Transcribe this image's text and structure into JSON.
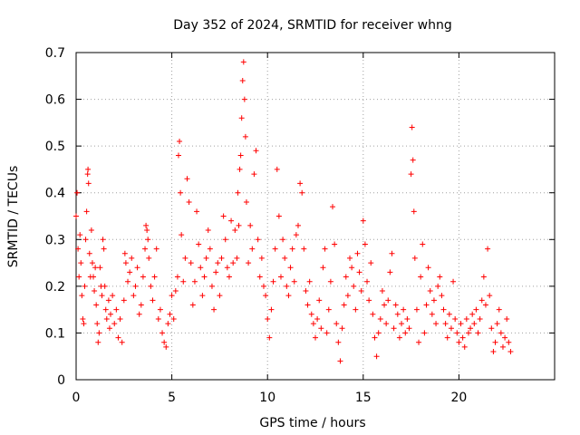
{
  "chart_data": {
    "type": "scatter",
    "title": "Day 352 of 2024, SRMTID for receiver whng",
    "xlabel": "GPS time / hours",
    "ylabel": "SRMTID / TECUs",
    "xlim": [
      0,
      25
    ],
    "ylim": [
      0,
      0.7
    ],
    "x_ticks": [
      0,
      5,
      10,
      15,
      20
    ],
    "x_tick_labels": [
      "0",
      "5",
      "10",
      "15",
      "20"
    ],
    "y_ticks": [
      0,
      0.1,
      0.2,
      0.3,
      0.4,
      0.5,
      0.6,
      0.7
    ],
    "y_tick_labels": [
      "0",
      "0.1",
      "0.2",
      "0.3",
      "0.4",
      "0.5",
      "0.6",
      "0.7"
    ],
    "grid": true,
    "marker": "+",
    "color": "#ff0000",
    "series": [
      {
        "name": "SRMTID",
        "points": [
          [
            0.0,
            0.35
          ],
          [
            0.05,
            0.4
          ],
          [
            0.1,
            0.28
          ],
          [
            0.15,
            0.22
          ],
          [
            0.2,
            0.31
          ],
          [
            0.25,
            0.25
          ],
          [
            0.3,
            0.18
          ],
          [
            0.35,
            0.13
          ],
          [
            0.4,
            0.12
          ],
          [
            0.45,
            0.2
          ],
          [
            0.5,
            0.3
          ],
          [
            0.55,
            0.36
          ],
          [
            0.6,
            0.44
          ],
          [
            0.62,
            0.45
          ],
          [
            0.65,
            0.42
          ],
          [
            0.7,
            0.27
          ],
          [
            0.75,
            0.22
          ],
          [
            0.8,
            0.32
          ],
          [
            0.85,
            0.25
          ],
          [
            0.9,
            0.22
          ],
          [
            0.95,
            0.19
          ],
          [
            1.0,
            0.24
          ],
          [
            1.05,
            0.16
          ],
          [
            1.1,
            0.12
          ],
          [
            1.15,
            0.08
          ],
          [
            1.2,
            0.1
          ],
          [
            1.25,
            0.24
          ],
          [
            1.3,
            0.2
          ],
          [
            1.35,
            0.18
          ],
          [
            1.4,
            0.3
          ],
          [
            1.45,
            0.28
          ],
          [
            1.5,
            0.2
          ],
          [
            1.55,
            0.15
          ],
          [
            1.6,
            0.13
          ],
          [
            1.7,
            0.17
          ],
          [
            1.75,
            0.11
          ],
          [
            1.8,
            0.14
          ],
          [
            1.9,
            0.18
          ],
          [
            2.0,
            0.12
          ],
          [
            2.1,
            0.15
          ],
          [
            2.2,
            0.09
          ],
          [
            2.3,
            0.13
          ],
          [
            2.4,
            0.08
          ],
          [
            2.5,
            0.17
          ],
          [
            2.55,
            0.27
          ],
          [
            2.6,
            0.25
          ],
          [
            2.7,
            0.21
          ],
          [
            2.8,
            0.23
          ],
          [
            2.9,
            0.26
          ],
          [
            3.0,
            0.18
          ],
          [
            3.1,
            0.2
          ],
          [
            3.2,
            0.24
          ],
          [
            3.3,
            0.14
          ],
          [
            3.4,
            0.16
          ],
          [
            3.5,
            0.22
          ],
          [
            3.6,
            0.28
          ],
          [
            3.65,
            0.33
          ],
          [
            3.7,
            0.32
          ],
          [
            3.75,
            0.3
          ],
          [
            3.8,
            0.26
          ],
          [
            3.9,
            0.2
          ],
          [
            4.0,
            0.17
          ],
          [
            4.1,
            0.22
          ],
          [
            4.2,
            0.28
          ],
          [
            4.3,
            0.13
          ],
          [
            4.4,
            0.15
          ],
          [
            4.5,
            0.1
          ],
          [
            4.6,
            0.08
          ],
          [
            4.7,
            0.07
          ],
          [
            4.8,
            0.12
          ],
          [
            4.9,
            0.14
          ],
          [
            5.0,
            0.18
          ],
          [
            5.1,
            0.13
          ],
          [
            5.2,
            0.19
          ],
          [
            5.3,
            0.22
          ],
          [
            5.35,
            0.48
          ],
          [
            5.4,
            0.51
          ],
          [
            5.45,
            0.4
          ],
          [
            5.5,
            0.31
          ],
          [
            5.6,
            0.21
          ],
          [
            5.7,
            0.26
          ],
          [
            5.8,
            0.43
          ],
          [
            5.9,
            0.38
          ],
          [
            6.0,
            0.25
          ],
          [
            6.1,
            0.16
          ],
          [
            6.2,
            0.21
          ],
          [
            6.3,
            0.36
          ],
          [
            6.4,
            0.29
          ],
          [
            6.5,
            0.24
          ],
          [
            6.6,
            0.18
          ],
          [
            6.7,
            0.22
          ],
          [
            6.8,
            0.26
          ],
          [
            6.9,
            0.32
          ],
          [
            7.0,
            0.28
          ],
          [
            7.1,
            0.2
          ],
          [
            7.2,
            0.15
          ],
          [
            7.3,
            0.23
          ],
          [
            7.4,
            0.25
          ],
          [
            7.5,
            0.18
          ],
          [
            7.6,
            0.26
          ],
          [
            7.7,
            0.35
          ],
          [
            7.8,
            0.3
          ],
          [
            7.9,
            0.24
          ],
          [
            8.0,
            0.22
          ],
          [
            8.1,
            0.34
          ],
          [
            8.2,
            0.25
          ],
          [
            8.3,
            0.32
          ],
          [
            8.4,
            0.26
          ],
          [
            8.45,
            0.4
          ],
          [
            8.5,
            0.33
          ],
          [
            8.55,
            0.45
          ],
          [
            8.6,
            0.48
          ],
          [
            8.65,
            0.56
          ],
          [
            8.7,
            0.64
          ],
          [
            8.75,
            0.68
          ],
          [
            8.8,
            0.6
          ],
          [
            8.85,
            0.52
          ],
          [
            8.9,
            0.38
          ],
          [
            9.0,
            0.25
          ],
          [
            9.1,
            0.33
          ],
          [
            9.2,
            0.28
          ],
          [
            9.3,
            0.44
          ],
          [
            9.4,
            0.49
          ],
          [
            9.5,
            0.3
          ],
          [
            9.6,
            0.22
          ],
          [
            9.7,
            0.26
          ],
          [
            9.8,
            0.2
          ],
          [
            9.9,
            0.18
          ],
          [
            10.0,
            0.13
          ],
          [
            10.1,
            0.09
          ],
          [
            10.2,
            0.15
          ],
          [
            10.3,
            0.21
          ],
          [
            10.4,
            0.28
          ],
          [
            10.5,
            0.45
          ],
          [
            10.6,
            0.35
          ],
          [
            10.7,
            0.22
          ],
          [
            10.8,
            0.3
          ],
          [
            10.9,
            0.26
          ],
          [
            11.0,
            0.2
          ],
          [
            11.1,
            0.18
          ],
          [
            11.2,
            0.24
          ],
          [
            11.3,
            0.28
          ],
          [
            11.4,
            0.21
          ],
          [
            11.5,
            0.31
          ],
          [
            11.6,
            0.33
          ],
          [
            11.7,
            0.42
          ],
          [
            11.8,
            0.4
          ],
          [
            11.9,
            0.28
          ],
          [
            12.0,
            0.19
          ],
          [
            12.1,
            0.16
          ],
          [
            12.2,
            0.21
          ],
          [
            12.3,
            0.14
          ],
          [
            12.4,
            0.12
          ],
          [
            12.5,
            0.09
          ],
          [
            12.6,
            0.13
          ],
          [
            12.7,
            0.17
          ],
          [
            12.8,
            0.11
          ],
          [
            12.9,
            0.24
          ],
          [
            13.0,
            0.28
          ],
          [
            13.1,
            0.1
          ],
          [
            13.2,
            0.15
          ],
          [
            13.3,
            0.21
          ],
          [
            13.4,
            0.37
          ],
          [
            13.5,
            0.29
          ],
          [
            13.6,
            0.12
          ],
          [
            13.7,
            0.08
          ],
          [
            13.8,
            0.04
          ],
          [
            13.9,
            0.11
          ],
          [
            14.0,
            0.16
          ],
          [
            14.1,
            0.22
          ],
          [
            14.2,
            0.18
          ],
          [
            14.3,
            0.26
          ],
          [
            14.4,
            0.24
          ],
          [
            14.5,
            0.2
          ],
          [
            14.6,
            0.15
          ],
          [
            14.7,
            0.27
          ],
          [
            14.8,
            0.23
          ],
          [
            14.9,
            0.19
          ],
          [
            15.0,
            0.34
          ],
          [
            15.1,
            0.29
          ],
          [
            15.2,
            0.21
          ],
          [
            15.3,
            0.17
          ],
          [
            15.4,
            0.25
          ],
          [
            15.5,
            0.14
          ],
          [
            15.6,
            0.09
          ],
          [
            15.7,
            0.05
          ],
          [
            15.8,
            0.1
          ],
          [
            15.9,
            0.13
          ],
          [
            16.0,
            0.19
          ],
          [
            16.1,
            0.16
          ],
          [
            16.2,
            0.12
          ],
          [
            16.3,
            0.17
          ],
          [
            16.4,
            0.23
          ],
          [
            16.5,
            0.27
          ],
          [
            16.6,
            0.11
          ],
          [
            16.7,
            0.16
          ],
          [
            16.8,
            0.14
          ],
          [
            16.9,
            0.09
          ],
          [
            17.0,
            0.12
          ],
          [
            17.1,
            0.15
          ],
          [
            17.2,
            0.1
          ],
          [
            17.3,
            0.13
          ],
          [
            17.4,
            0.11
          ],
          [
            17.5,
            0.44
          ],
          [
            17.55,
            0.54
          ],
          [
            17.6,
            0.47
          ],
          [
            17.65,
            0.36
          ],
          [
            17.7,
            0.26
          ],
          [
            17.8,
            0.15
          ],
          [
            17.9,
            0.08
          ],
          [
            18.0,
            0.22
          ],
          [
            18.1,
            0.29
          ],
          [
            18.2,
            0.1
          ],
          [
            18.3,
            0.16
          ],
          [
            18.4,
            0.24
          ],
          [
            18.5,
            0.19
          ],
          [
            18.6,
            0.14
          ],
          [
            18.7,
            0.17
          ],
          [
            18.8,
            0.12
          ],
          [
            18.9,
            0.2
          ],
          [
            19.0,
            0.22
          ],
          [
            19.1,
            0.18
          ],
          [
            19.2,
            0.15
          ],
          [
            19.3,
            0.12
          ],
          [
            19.4,
            0.09
          ],
          [
            19.5,
            0.14
          ],
          [
            19.6,
            0.11
          ],
          [
            19.7,
            0.21
          ],
          [
            19.8,
            0.13
          ],
          [
            19.9,
            0.1
          ],
          [
            20.0,
            0.08
          ],
          [
            20.1,
            0.12
          ],
          [
            20.2,
            0.09
          ],
          [
            20.3,
            0.07
          ],
          [
            20.4,
            0.13
          ],
          [
            20.5,
            0.1
          ],
          [
            20.6,
            0.11
          ],
          [
            20.7,
            0.14
          ],
          [
            20.8,
            0.12
          ],
          [
            20.9,
            0.15
          ],
          [
            21.0,
            0.1
          ],
          [
            21.1,
            0.13
          ],
          [
            21.2,
            0.17
          ],
          [
            21.3,
            0.22
          ],
          [
            21.4,
            0.16
          ],
          [
            21.5,
            0.28
          ],
          [
            21.6,
            0.18
          ],
          [
            21.7,
            0.11
          ],
          [
            21.8,
            0.06
          ],
          [
            21.9,
            0.08
          ],
          [
            22.0,
            0.12
          ],
          [
            22.1,
            0.15
          ],
          [
            22.2,
            0.1
          ],
          [
            22.3,
            0.07
          ],
          [
            22.4,
            0.09
          ],
          [
            22.5,
            0.13
          ],
          [
            22.6,
            0.08
          ],
          [
            22.7,
            0.06
          ]
        ]
      }
    ]
  }
}
